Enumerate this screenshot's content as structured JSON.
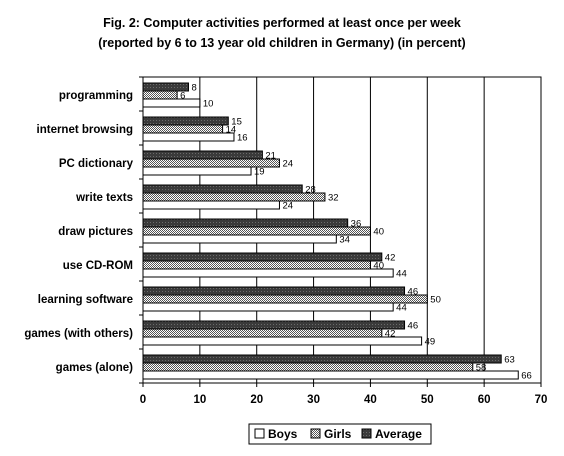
{
  "chart_data": {
    "type": "bar",
    "orientation": "horizontal",
    "title": "Fig. 2: Computer activities performed at least once per week",
    "subtitle": "(reported by 6 to 13 year old children in Germany) (in percent)",
    "categories": [
      "programming",
      "internet browsing",
      "PC dictionary",
      "write texts",
      "draw pictures",
      "use CD-ROM",
      "learning software",
      "games (with others)",
      "games (alone)"
    ],
    "series": [
      {
        "name": "Average",
        "values": [
          8,
          15,
          21,
          28,
          36,
          42,
          46,
          46,
          63
        ],
        "color": "#404040",
        "pattern": "dark"
      },
      {
        "name": "Girls",
        "values": [
          6,
          14,
          24,
          32,
          40,
          40,
          50,
          42,
          58
        ],
        "color": "#9a9a9a",
        "pattern": "dotted"
      },
      {
        "name": "Boys",
        "values": [
          10,
          16,
          19,
          24,
          34,
          44,
          44,
          49,
          66
        ],
        "color": "#ffffff",
        "pattern": "plain"
      }
    ],
    "xlim": [
      0,
      70
    ],
    "xticks": [
      "0",
      "10",
      "20",
      "30",
      "40",
      "50",
      "60",
      "70"
    ],
    "grid": true,
    "legend_position": "bottom",
    "legend_order": [
      "Boys",
      "Girls",
      "Average"
    ]
  }
}
